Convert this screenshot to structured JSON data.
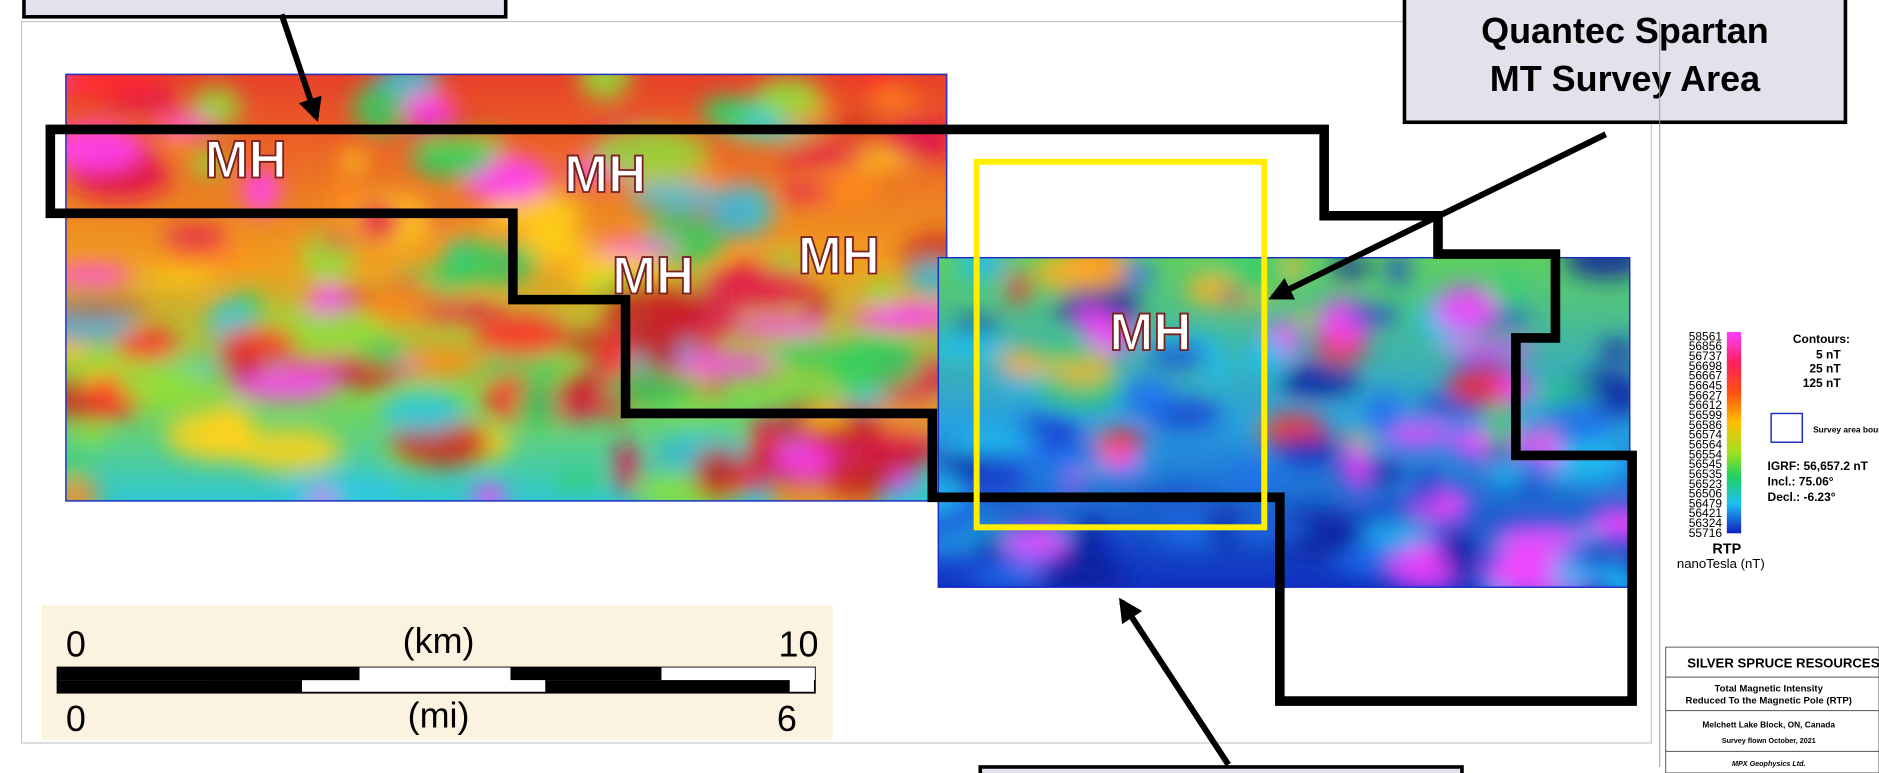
{
  "labels": {
    "mh": [
      "MH",
      "MH",
      "MH",
      "MH",
      "MH"
    ]
  },
  "callout": {
    "line1": "Quantec Spartan",
    "line2": "MT Survey Area"
  },
  "scale_bar": {
    "km_start": "0",
    "km_unit": "(km)",
    "km_end": "10",
    "mi_start": "0",
    "mi_unit": "(mi)",
    "mi_end": "6"
  },
  "legend": {
    "values": [
      "58561",
      "56856",
      "56737",
      "56698",
      "56667",
      "56645",
      "56627",
      "56612",
      "56599",
      "56586",
      "56574",
      "56564",
      "56554",
      "56545",
      "56535",
      "56523",
      "56506",
      "56479",
      "56421",
      "56324",
      "55716"
    ],
    "title": "RTP",
    "unit": "nanoTesla (nT)",
    "contours_title": "Contours:",
    "contours": [
      "5 nT",
      "25 nT",
      "125 nT"
    ],
    "boundary": "Survey area boundary",
    "igrf": "IGRF: 56,657.2 nT",
    "incl": "Incl.: 75.06°",
    "decl": "Decl.: -6.23°"
  },
  "title_block": {
    "company": "SILVER SPRUCE RESOURCES INC.",
    "line1": "Total Magnetic Intensity",
    "line2": "Reduced To the Magnetic Pole (RTP)",
    "location": "Melchett Lake Block, ON, Canada",
    "flown": "Survey flown October, 2021",
    "contractor": "MPX Geophysics Ltd."
  }
}
